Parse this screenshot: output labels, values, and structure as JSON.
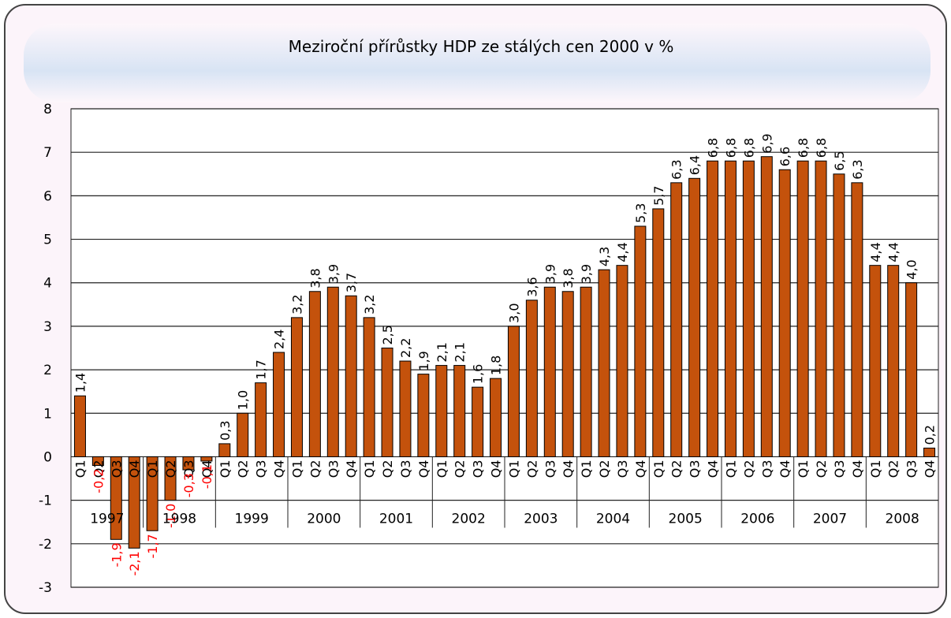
{
  "chart_data": {
    "type": "bar",
    "title": "Meziroční přírůstky HDP ze stálých cen 2000 v %",
    "categories": [
      "Q1",
      "Q2",
      "Q3",
      "Q4",
      "Q1",
      "Q2",
      "Q3",
      "Q4",
      "Q1",
      "Q2",
      "Q3",
      "Q4",
      "Q1",
      "Q2",
      "Q3",
      "Q4",
      "Q1",
      "Q2",
      "Q3",
      "Q4",
      "Q1",
      "Q2",
      "Q3",
      "Q4",
      "Q1",
      "Q2",
      "Q3",
      "Q4",
      "Q1",
      "Q2",
      "Q3",
      "Q4",
      "Q1",
      "Q2",
      "Q3",
      "Q4",
      "Q1",
      "Q2",
      "Q3",
      "Q4",
      "Q1",
      "Q2",
      "Q3",
      "Q4",
      "Q1",
      "Q2",
      "Q3",
      "Q4"
    ],
    "category_groups": [
      "1997",
      "1998",
      "1999",
      "2000",
      "2001",
      "2002",
      "2003",
      "2004",
      "2005",
      "2006",
      "2007",
      "2008"
    ],
    "values": [
      1.4,
      -0.2,
      -1.9,
      -2.1,
      -1.7,
      -1.0,
      -0.3,
      -0.1,
      0.3,
      1.0,
      1.7,
      2.4,
      3.2,
      3.8,
      3.9,
      3.7,
      3.2,
      2.5,
      2.2,
      1.9,
      2.1,
      2.1,
      1.6,
      1.8,
      3.0,
      3.6,
      3.9,
      3.8,
      3.9,
      4.3,
      4.4,
      5.3,
      5.7,
      6.3,
      6.4,
      6.8,
      6.8,
      6.8,
      6.9,
      6.6,
      6.8,
      6.8,
      6.5,
      6.3,
      4.4,
      4.4,
      4.0,
      0.2
    ],
    "value_labels": [
      "1,4",
      "-0,2",
      "-1,9",
      "-2,1",
      "-1,7",
      "-1,0",
      "-0,3",
      "-0,1",
      "0,3",
      "1,0",
      "1,7",
      "2,4",
      "3,2",
      "3,8",
      "3,9",
      "3,7",
      "3,2",
      "2,5",
      "2,2",
      "1,9",
      "2,1",
      "2,1",
      "1,6",
      "1,8",
      "3,0",
      "3,6",
      "3,9",
      "3,8",
      "3,9",
      "4,3",
      "4,4",
      "5,3",
      "5,7",
      "6,3",
      "6,4",
      "6,8",
      "6,8",
      "6,8",
      "6,9",
      "6,6",
      "6,8",
      "6,8",
      "6,5",
      "6,3",
      "4,4",
      "4,4",
      "4,0",
      "0,2"
    ],
    "color": "#c4520c",
    "negative_label_color": "#ff0000",
    "ylim": [
      -3,
      8
    ],
    "yticks": [
      -3,
      -2,
      -1,
      0,
      1,
      2,
      3,
      4,
      5,
      6,
      7,
      8
    ],
    "grid": true
  }
}
